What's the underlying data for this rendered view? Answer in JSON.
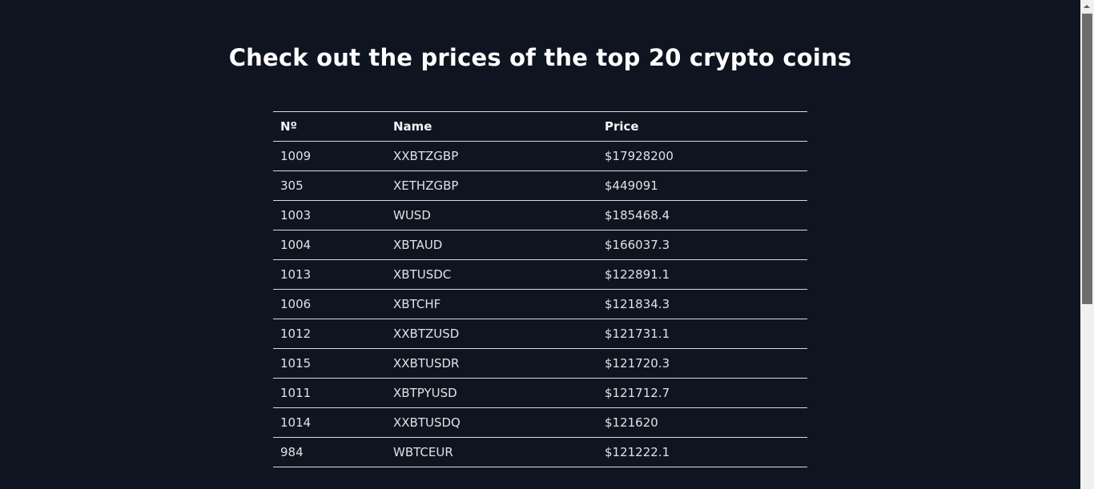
{
  "page": {
    "title": "Check out the prices of the top 20 crypto coins"
  },
  "table": {
    "headers": [
      "Nº",
      "Name",
      "Price"
    ],
    "rows": [
      {
        "no": "1009",
        "name": "XXBTZGBP",
        "price": "$17928200"
      },
      {
        "no": "305",
        "name": "XETHZGBP",
        "price": "$449091"
      },
      {
        "no": "1003",
        "name": "WUSD",
        "price": "$185468.4"
      },
      {
        "no": "1004",
        "name": "XBTAUD",
        "price": "$166037.3"
      },
      {
        "no": "1013",
        "name": "XBTUSDC",
        "price": "$122891.1"
      },
      {
        "no": "1006",
        "name": "XBTCHF",
        "price": "$121834.3"
      },
      {
        "no": "1012",
        "name": "XXBTZUSD",
        "price": "$121731.1"
      },
      {
        "no": "1015",
        "name": "XXBTUSDR",
        "price": "$121720.3"
      },
      {
        "no": "1011",
        "name": "XBTPYUSD",
        "price": "$121712.7"
      },
      {
        "no": "1014",
        "name": "XXBTUSDQ",
        "price": "$121620"
      },
      {
        "no": "984",
        "name": "WBTCEUR",
        "price": "$121222.1"
      }
    ]
  },
  "colors": {
    "background": "#0f1520",
    "text": "#e6e8eb",
    "row_border": "#d8dbe0",
    "scrollbar_thumb": "#6e6e6e"
  },
  "icons": {
    "scroll_up": "scroll-up-arrow-icon"
  }
}
